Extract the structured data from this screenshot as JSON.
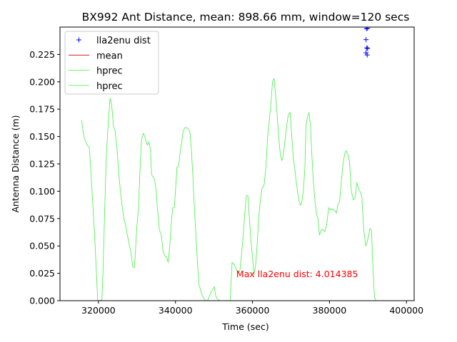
{
  "chart_data": {
    "type": "line",
    "title": "BX992 Ant Distance, mean: 898.66 mm, window=120 secs",
    "xlabel": "Time (sec)",
    "ylabel": "Antenna Distance (m)",
    "xlim": [
      310000,
      402000
    ],
    "ylim": [
      0.0,
      0.25
    ],
    "xticks": [
      320000,
      340000,
      360000,
      380000,
      400000
    ],
    "xtick_labels": [
      "320000",
      "340000",
      "360000",
      "380000",
      "400000"
    ],
    "yticks": [
      0.0,
      0.025,
      0.05,
      0.075,
      0.1,
      0.125,
      0.15,
      0.175,
      0.2,
      0.225
    ],
    "ytick_labels": [
      "0.000",
      "0.025",
      "0.050",
      "0.075",
      "0.100",
      "0.125",
      "0.150",
      "0.175",
      "0.200",
      "0.225"
    ],
    "grid": false,
    "legend_position": "top-left",
    "annotation": {
      "text": "Max lla2enu dist: 4.014385",
      "x": 355800,
      "y": 0.0215,
      "color": "#ff0000"
    },
    "series": [
      {
        "name": "lla2enu dist",
        "kind": "markers",
        "marker": "+",
        "color": "#0000ff",
        "x": [
          389600,
          389900,
          389500,
          389700,
          389900,
          389500,
          389800
        ],
        "y": [
          0.2485,
          0.249,
          0.2385,
          0.231,
          0.2305,
          0.2265,
          0.2245
        ]
      },
      {
        "name": "mean",
        "kind": "line",
        "color": "#cc0000",
        "x": [],
        "y": []
      },
      {
        "name": "hprec",
        "kind": "line",
        "color": "#44ee44",
        "x": [
          315600,
          316200,
          316900,
          317600,
          318000,
          318500,
          319000,
          319400,
          319800,
          320300,
          320900,
          321200,
          321600,
          322000,
          322500,
          323000,
          323400,
          323900,
          324300,
          324800,
          325200,
          325700,
          326200,
          326600,
          327100,
          327500,
          327900,
          328400,
          328900,
          329300,
          329600,
          329900,
          330400,
          330800,
          331200,
          331700,
          332200,
          332700,
          333100,
          333500,
          333800,
          334200,
          334600,
          335000,
          335300,
          335800,
          336300,
          336800,
          337200,
          337700,
          338100,
          338500,
          338900,
          339300,
          339700,
          340000,
          340400,
          340800,
          341200,
          341600,
          342000,
          342400,
          342900,
          343300,
          343700,
          344100,
          344500,
          344900,
          345300,
          345700,
          346100,
          346500,
          346900,
          347400,
          347900,
          348300,
          348800,
          349200,
          349700,
          350100,
          350400,
          350800,
          351100,
          351400
        ],
        "y": [
          0.165,
          0.15,
          0.143,
          0.14,
          0.12,
          0.09,
          0.06,
          0.03,
          0.0,
          0.0,
          0.001,
          0.03,
          0.08,
          0.13,
          0.16,
          0.185,
          0.18,
          0.16,
          0.155,
          0.14,
          0.12,
          0.1,
          0.085,
          0.075,
          0.068,
          0.06,
          0.053,
          0.045,
          0.031,
          0.03,
          0.045,
          0.065,
          0.085,
          0.12,
          0.148,
          0.153,
          0.148,
          0.142,
          0.145,
          0.138,
          0.115,
          0.113,
          0.11,
          0.1,
          0.085,
          0.065,
          0.06,
          0.045,
          0.041,
          0.04,
          0.035,
          0.05,
          0.07,
          0.085,
          0.085,
          0.1,
          0.122,
          0.123,
          0.135,
          0.145,
          0.155,
          0.158,
          0.158,
          0.157,
          0.155,
          0.14,
          0.115,
          0.085,
          0.06,
          0.035,
          0.015,
          0.01,
          0.005,
          0.002,
          0.0,
          0.0,
          0.004,
          0.008,
          0.01,
          0.013,
          0.005,
          0.002,
          0.001,
          0.0
        ]
      },
      {
        "name": "hprec",
        "kind": "line",
        "color": "#44ee44",
        "x": [
          354200,
          354700,
          355200,
          355700,
          356200,
          356700,
          357100,
          357600,
          358000,
          358400,
          358800,
          359200,
          359600,
          360000,
          360400,
          360800,
          361200,
          361600,
          362000,
          362500,
          363000,
          363500,
          363900,
          364300,
          364800,
          365200,
          365600,
          366000,
          366400,
          366800,
          367200,
          367600,
          368000,
          368400,
          368900,
          369300,
          369800,
          370200,
          370600,
          371000,
          371300,
          371700,
          372100,
          372500,
          372800,
          373200,
          373600,
          373900,
          374300,
          374700,
          375100,
          375400,
          375800,
          376200,
          376600,
          377000,
          377400,
          377900,
          378300,
          378800,
          379300,
          379800,
          380200,
          380600,
          381000,
          381400,
          381800,
          382200,
          382600,
          383000,
          383500,
          384000,
          384400,
          384800,
          385200,
          385700,
          386200,
          386700,
          387100,
          387500,
          387900,
          388400,
          388900,
          389400,
          389800,
          390200,
          390500,
          390900,
          391300,
          391700,
          392100,
          392500,
          392900,
          393300,
          393600,
          394000,
          394400
        ],
        "y": [
          0.0,
          0.035,
          0.033,
          0.03,
          0.025,
          0.027,
          0.04,
          0.06,
          0.08,
          0.096,
          0.096,
          0.075,
          0.055,
          0.04,
          0.024,
          0.032,
          0.05,
          0.075,
          0.09,
          0.103,
          0.105,
          0.122,
          0.148,
          0.162,
          0.18,
          0.2,
          0.203,
          0.188,
          0.17,
          0.15,
          0.135,
          0.128,
          0.133,
          0.145,
          0.16,
          0.17,
          0.172,
          0.15,
          0.13,
          0.12,
          0.11,
          0.1,
          0.091,
          0.087,
          0.09,
          0.1,
          0.12,
          0.16,
          0.168,
          0.172,
          0.158,
          0.135,
          0.11,
          0.092,
          0.08,
          0.075,
          0.06,
          0.065,
          0.065,
          0.063,
          0.07,
          0.085,
          0.083,
          0.084,
          0.083,
          0.082,
          0.08,
          0.088,
          0.09,
          0.105,
          0.125,
          0.135,
          0.137,
          0.133,
          0.127,
          0.1,
          0.092,
          0.095,
          0.108,
          0.103,
          0.1,
          0.095,
          0.065,
          0.05,
          0.054,
          0.06,
          0.066,
          0.064,
          0.03,
          0.003,
          0.0,
          0.0,
          0.0,
          0.0,
          0.0,
          0.0,
          0.0
        ]
      }
    ]
  }
}
